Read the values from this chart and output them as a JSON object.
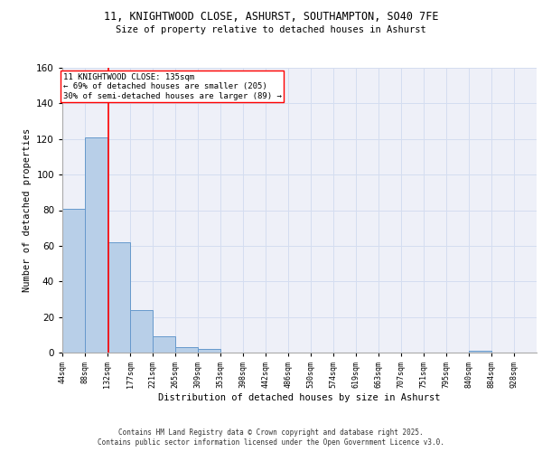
{
  "title1": "11, KNIGHTWOOD CLOSE, ASHURST, SOUTHAMPTON, SO40 7FE",
  "title2": "Size of property relative to detached houses in Ashurst",
  "xlabel": "Distribution of detached houses by size in Ashurst",
  "ylabel": "Number of detached properties",
  "bar_edges": [
    44,
    88,
    132,
    177,
    221,
    265,
    309,
    353,
    398,
    442,
    486,
    530,
    574,
    619,
    663,
    707,
    751,
    795,
    840,
    884,
    928
  ],
  "bar_heights": [
    81,
    121,
    62,
    24,
    9,
    3,
    2,
    0,
    0,
    0,
    0,
    0,
    0,
    0,
    0,
    0,
    0,
    0,
    1,
    0,
    0
  ],
  "bar_color": "#b8cfe8",
  "bar_edge_color": "#6699cc",
  "grid_color": "#d4ddf0",
  "bg_color": "#eef0f8",
  "vline_x": 135,
  "vline_color": "red",
  "annotation_text": "11 KNIGHTWOOD CLOSE: 135sqm\n← 69% of detached houses are smaller (205)\n30% of semi-detached houses are larger (89) →",
  "annotation_box_color": "white",
  "annotation_box_edge": "red",
  "ylim": [
    0,
    160
  ],
  "yticks": [
    0,
    20,
    40,
    60,
    80,
    100,
    120,
    140,
    160
  ],
  "tick_labels": [
    "44sqm",
    "88sqm",
    "132sqm",
    "177sqm",
    "221sqm",
    "265sqm",
    "309sqm",
    "353sqm",
    "398sqm",
    "442sqm",
    "486sqm",
    "530sqm",
    "574sqm",
    "619sqm",
    "663sqm",
    "707sqm",
    "751sqm",
    "795sqm",
    "840sqm",
    "884sqm",
    "928sqm"
  ],
  "footer1": "Contains HM Land Registry data © Crown copyright and database right 2025.",
  "footer2": "Contains public sector information licensed under the Open Government Licence v3.0."
}
